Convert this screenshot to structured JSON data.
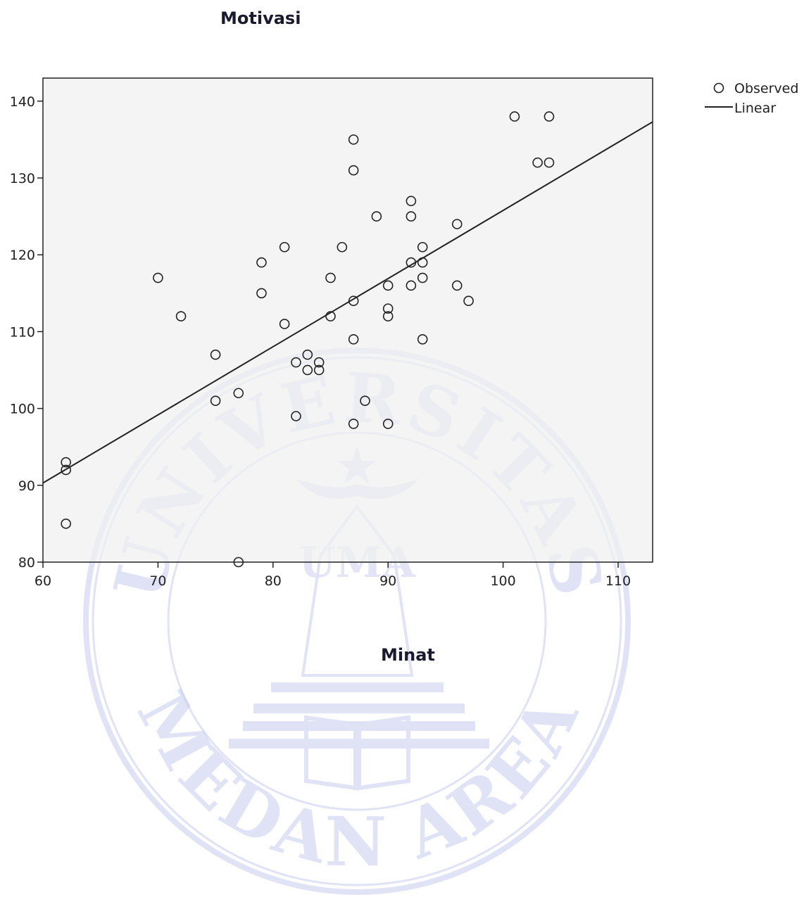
{
  "chart_data": {
    "type": "scatter",
    "xlabel": "Minat",
    "ylabel": "Motivasi",
    "xlim": [
      60,
      113
    ],
    "ylim": [
      80,
      143
    ],
    "xticks": [
      60,
      70,
      80,
      90,
      100,
      110
    ],
    "yticks": [
      80,
      90,
      100,
      110,
      120,
      130,
      140
    ],
    "legend": {
      "position": "top-right",
      "entries": [
        "Observed",
        "Linear"
      ]
    },
    "grid": false,
    "background_color": "#f0f0f0",
    "series": [
      {
        "name": "Observed",
        "style": "open-circle",
        "points": [
          [
            62,
            93
          ],
          [
            62,
            92
          ],
          [
            62,
            85
          ],
          [
            70,
            117
          ],
          [
            72,
            112
          ],
          [
            75,
            107
          ],
          [
            75,
            101
          ],
          [
            77,
            102
          ],
          [
            77,
            80
          ],
          [
            79,
            119
          ],
          [
            79,
            115
          ],
          [
            81,
            121
          ],
          [
            81,
            111
          ],
          [
            82,
            106
          ],
          [
            82,
            99
          ],
          [
            83,
            107
          ],
          [
            83,
            105
          ],
          [
            84,
            106
          ],
          [
            84,
            105
          ],
          [
            85,
            117
          ],
          [
            85,
            112
          ],
          [
            86,
            121
          ],
          [
            87,
            135
          ],
          [
            87,
            131
          ],
          [
            87,
            114
          ],
          [
            87,
            109
          ],
          [
            87,
            98
          ],
          [
            88,
            101
          ],
          [
            89,
            125
          ],
          [
            90,
            116
          ],
          [
            90,
            113
          ],
          [
            90,
            112
          ],
          [
            90,
            98
          ],
          [
            92,
            127
          ],
          [
            92,
            125
          ],
          [
            92,
            119
          ],
          [
            92,
            116
          ],
          [
            93,
            121
          ],
          [
            93,
            119
          ],
          [
            93,
            117
          ],
          [
            93,
            109
          ],
          [
            96,
            124
          ],
          [
            96,
            116
          ],
          [
            97,
            114
          ],
          [
            101,
            138
          ],
          [
            103,
            132
          ],
          [
            104,
            138
          ],
          [
            104,
            132
          ]
        ]
      },
      {
        "name": "Linear",
        "style": "line",
        "endpoints": [
          [
            60,
            90.3
          ],
          [
            113,
            137.3
          ]
        ]
      }
    ],
    "watermark": {
      "top_arc": "UNIVERSITAS",
      "bottom_arc": "MEDAN AREA",
      "center": "UMA",
      "color": "#c8cbf0"
    }
  }
}
